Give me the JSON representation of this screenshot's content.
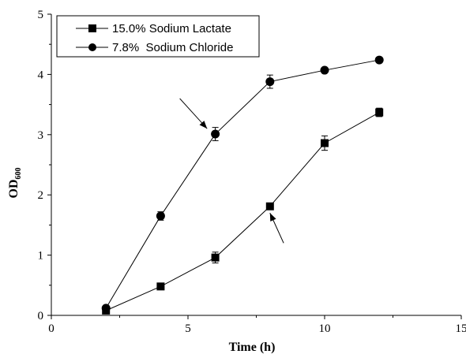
{
  "chart_data": {
    "type": "line",
    "xlabel": "Time (h)",
    "ylabel_main": "OD",
    "ylabel_sub": "600",
    "xlim": [
      0,
      15
    ],
    "ylim": [
      0,
      5
    ],
    "xticks": [
      0,
      5,
      10,
      15
    ],
    "yticks": [
      0,
      1,
      2,
      3,
      4,
      5
    ],
    "xtick_labels": [
      "0",
      "5",
      "10",
      "15"
    ],
    "ytick_labels": [
      "0",
      "1",
      "2",
      "3",
      "4",
      "5"
    ],
    "grid": false,
    "legend_position": "top-left",
    "series": [
      {
        "name": "15.0% Sodium Lactate",
        "marker": "square",
        "x": [
          2,
          4,
          6,
          8,
          10,
          12
        ],
        "y": [
          0.08,
          0.48,
          0.96,
          1.81,
          2.86,
          3.37
        ],
        "err": [
          0.02,
          0.04,
          0.09,
          0.03,
          0.12,
          0.07
        ]
      },
      {
        "name": "7.8%  Sodium Chloride",
        "marker": "circle",
        "x": [
          2,
          4,
          6,
          8,
          10,
          12
        ],
        "y": [
          0.12,
          1.65,
          3.01,
          3.88,
          4.07,
          4.24
        ],
        "err": [
          0.02,
          0.07,
          0.11,
          0.11,
          0.04,
          0.04
        ]
      }
    ],
    "annotations": [
      {
        "type": "arrow",
        "from": [
          4.7,
          3.6
        ],
        "to": [
          5.7,
          3.1
        ]
      },
      {
        "type": "arrow",
        "from": [
          8.5,
          1.2
        ],
        "to": [
          8.0,
          1.7
        ]
      }
    ]
  }
}
